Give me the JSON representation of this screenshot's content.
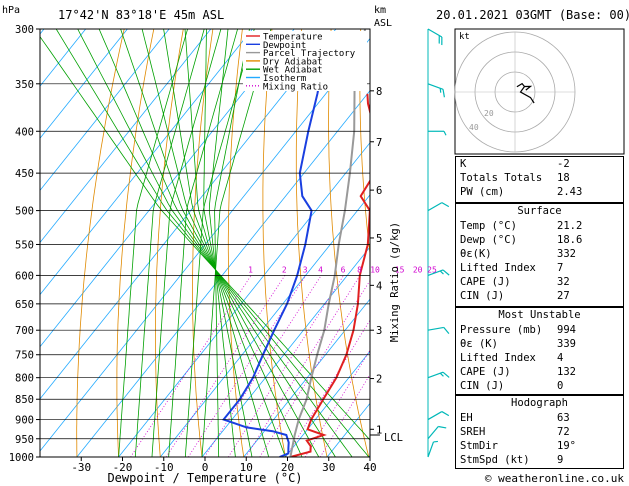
{
  "header": {
    "hpa_label": "hPa",
    "location": "17°42'N 83°18'E 45m ASL",
    "km_label": "km",
    "asl_label": "ASL",
    "datetime": "20.01.2021 03GMT (Base: 00)"
  },
  "legend": [
    {
      "label": "Temperature",
      "color": "#e02020"
    },
    {
      "label": "Dewpoint",
      "color": "#1a3fe0"
    },
    {
      "label": "Parcel Trajectory",
      "color": "#999999"
    },
    {
      "label": "Dry Adiabat",
      "color": "#e08a00"
    },
    {
      "label": "Wet Adiabat",
      "color": "#00a000"
    },
    {
      "label": "Isotherm",
      "color": "#22aaff"
    },
    {
      "label": "Mixing Ratio",
      "color": "#d000d0"
    }
  ],
  "chart_data": {
    "type": "line",
    "title": "",
    "xlabel": "Dewpoint / Temperature (°C)",
    "ylabel": "",
    "mixing_ratio_label": "Mixing Ratio (g/kg)",
    "x_ticks": [
      -30,
      -20,
      -10,
      0,
      10,
      20,
      30,
      40
    ],
    "xlim": [
      -40,
      40
    ],
    "pressure_levels": [
      300,
      350,
      400,
      450,
      500,
      550,
      600,
      650,
      700,
      750,
      800,
      850,
      900,
      950,
      1000
    ],
    "ylim": [
      1000,
      300
    ],
    "km_ticks": [
      {
        "p": 925,
        "label": "1"
      },
      {
        "p": 802,
        "label": "2"
      },
      {
        "p": 700,
        "label": "3"
      },
      {
        "p": 617,
        "label": "4"
      },
      {
        "p": 540,
        "label": "5"
      },
      {
        "p": 472,
        "label": "6"
      },
      {
        "p": 412,
        "label": "7"
      },
      {
        "p": 357,
        "label": "8"
      }
    ],
    "mixing_ratio_lines": [
      1,
      2,
      3,
      4,
      6,
      8,
      10,
      15,
      20,
      25
    ],
    "lcl": {
      "p": 940,
      "label": "LCL"
    },
    "series": [
      {
        "name": "Temperature",
        "color": "#e02020",
        "points": [
          [
            1000,
            21.2
          ],
          [
            985,
            25
          ],
          [
            970,
            24
          ],
          [
            955,
            22
          ],
          [
            940,
            25
          ],
          [
            925,
            20
          ],
          [
            900,
            19
          ],
          [
            850,
            18
          ],
          [
            800,
            17
          ],
          [
            750,
            15
          ],
          [
            700,
            12
          ],
          [
            650,
            8
          ],
          [
            600,
            3
          ],
          [
            550,
            -1
          ],
          [
            500,
            -7
          ],
          [
            480,
            -12
          ],
          [
            450,
            -13
          ],
          [
            400,
            -21
          ],
          [
            370,
            -28
          ],
          [
            360,
            -30
          ]
        ]
      },
      {
        "name": "Dewpoint",
        "color": "#1a3fe0",
        "points": [
          [
            1000,
            18.6
          ],
          [
            990,
            20
          ],
          [
            975,
            19
          ],
          [
            960,
            18
          ],
          [
            940,
            16
          ],
          [
            930,
            12
          ],
          [
            920,
            5
          ],
          [
            900,
            -2
          ],
          [
            850,
            -2
          ],
          [
            800,
            -3
          ],
          [
            750,
            -5
          ],
          [
            700,
            -7
          ],
          [
            650,
            -9
          ],
          [
            600,
            -12
          ],
          [
            550,
            -16
          ],
          [
            500,
            -21
          ],
          [
            480,
            -26
          ],
          [
            450,
            -31
          ],
          [
            400,
            -37
          ],
          [
            360,
            -42
          ],
          [
            340,
            -45
          ],
          [
            330,
            -46
          ]
        ]
      },
      {
        "name": "Parcel Trajectory",
        "color": "#999999",
        "points": [
          [
            1000,
            21.2
          ],
          [
            940,
            18
          ],
          [
            900,
            16
          ],
          [
            850,
            14
          ],
          [
            800,
            11
          ],
          [
            750,
            8
          ],
          [
            700,
            5
          ],
          [
            650,
            1
          ],
          [
            600,
            -3
          ],
          [
            550,
            -8
          ],
          [
            500,
            -13
          ],
          [
            450,
            -19
          ],
          [
            400,
            -26
          ],
          [
            350,
            -35
          ],
          [
            300,
            -43
          ]
        ]
      }
    ],
    "winds": [
      {
        "p": 1000,
        "dir": 200,
        "spd": 5
      },
      {
        "p": 950,
        "dir": 220,
        "spd": 10
      },
      {
        "p": 900,
        "dir": 240,
        "spd": 10
      },
      {
        "p": 800,
        "dir": 250,
        "spd": 15
      },
      {
        "p": 700,
        "dir": 260,
        "spd": 10
      },
      {
        "p": 600,
        "dir": 250,
        "spd": 15
      },
      {
        "p": 500,
        "dir": 240,
        "spd": 10
      },
      {
        "p": 400,
        "dir": 270,
        "spd": 5
      },
      {
        "p": 350,
        "dir": 290,
        "spd": 15
      },
      {
        "p": 300,
        "dir": 300,
        "spd": 20
      }
    ]
  },
  "hodograph": {
    "unit_label": "kt",
    "ring_labels": [
      "40",
      "20"
    ]
  },
  "indices": [
    {
      "label": "K",
      "value": "-2"
    },
    {
      "label": "Totals Totals",
      "value": "18"
    },
    {
      "label": "PW (cm)",
      "value": "2.43"
    }
  ],
  "surface": {
    "title": "Surface",
    "rows": [
      {
        "label": "Temp (°C)",
        "value": "21.2"
      },
      {
        "label": "Dewp (°C)",
        "value": "18.6"
      },
      {
        "label": "θε(K)",
        "value": "332"
      },
      {
        "label": "Lifted Index",
        "value": "7"
      },
      {
        "label": "CAPE (J)",
        "value": "32"
      },
      {
        "label": "CIN (J)",
        "value": "27"
      }
    ]
  },
  "most_unstable": {
    "title": "Most Unstable",
    "rows": [
      {
        "label": "Pressure (mb)",
        "value": "994"
      },
      {
        "label": "θε (K)",
        "value": "339"
      },
      {
        "label": "Lifted Index",
        "value": "4"
      },
      {
        "label": "CAPE (J)",
        "value": "132"
      },
      {
        "label": "CIN (J)",
        "value": "0"
      }
    ]
  },
  "hodograph_table": {
    "title": "Hodograph",
    "rows": [
      {
        "label": "EH",
        "value": "63"
      },
      {
        "label": "SREH",
        "value": "72"
      },
      {
        "label": "StmDir",
        "value": "19°"
      },
      {
        "label": "StmSpd (kt)",
        "value": "9"
      }
    ]
  },
  "footer": {
    "copyright": "© weatheronline.co.uk"
  }
}
